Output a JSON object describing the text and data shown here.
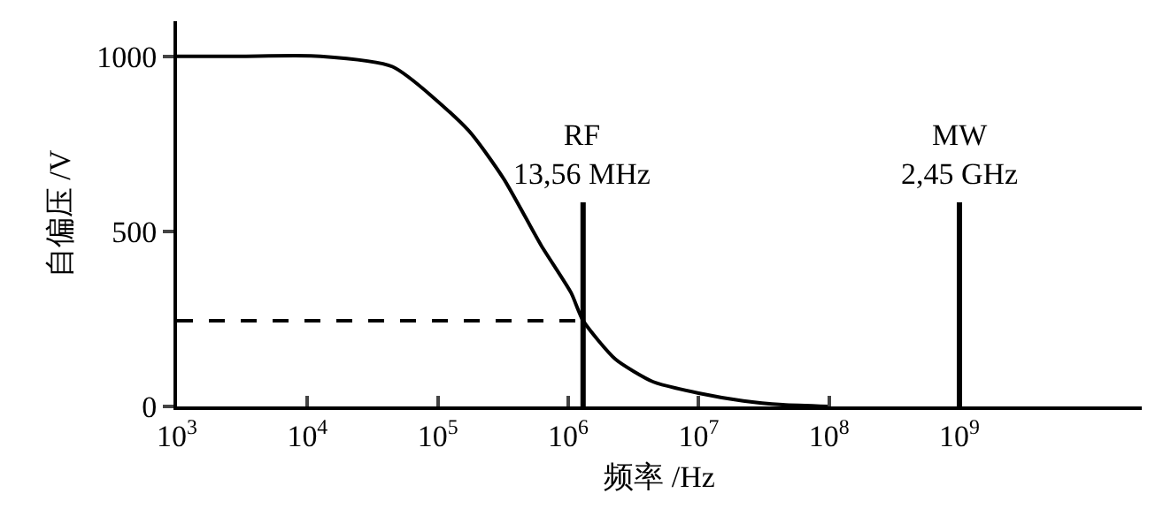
{
  "chart_data": {
    "type": "line",
    "xlabel": "频率 /Hz",
    "ylabel": "自偏压 /V",
    "log": "x",
    "x": [
      1000,
      3000,
      12600,
      45000,
      170000,
      320000,
      620000,
      1050000,
      1300000,
      2300000,
      4500000,
      10000000,
      22000000,
      44000000,
      100000000
    ],
    "series": [
      {
        "color": "#000000",
        "values": [
          1000,
          1000,
          1000,
          970,
          790,
          650,
          460,
          325,
          245,
          135,
          70,
          38,
          16,
          5,
          0
        ]
      }
    ],
    "xlim": [
      1000,
      25000000000
    ],
    "ylim": [
      0,
      1100
    ],
    "xticks": [
      {
        "value": 1000,
        "label": "10$^{3}$"
      },
      {
        "value": 10000,
        "label": "10$^{4}$"
      },
      {
        "value": 100000,
        "label": "10$^{5}$"
      },
      {
        "value": 1000000,
        "label": "10$^{6}$"
      },
      {
        "value": 10000000,
        "label": "10$^{7}$"
      },
      {
        "value": 100000000,
        "label": "10$^{8}$"
      },
      {
        "value": 1000000000,
        "label": "10$^{9}$"
      }
    ],
    "yticks": [
      0,
      500,
      1000
    ],
    "ref_lines": [
      {
        "axis": "x",
        "value": 1300000,
        "label": "RF\n13,56 MHz"
      },
      {
        "axis": "x",
        "value": 1000000000,
        "label": "MW\n2,45 GHz"
      },
      {
        "axis": "y",
        "value": 245,
        "line_style": "dashed"
      }
    ],
    "line_style": "solid"
  }
}
